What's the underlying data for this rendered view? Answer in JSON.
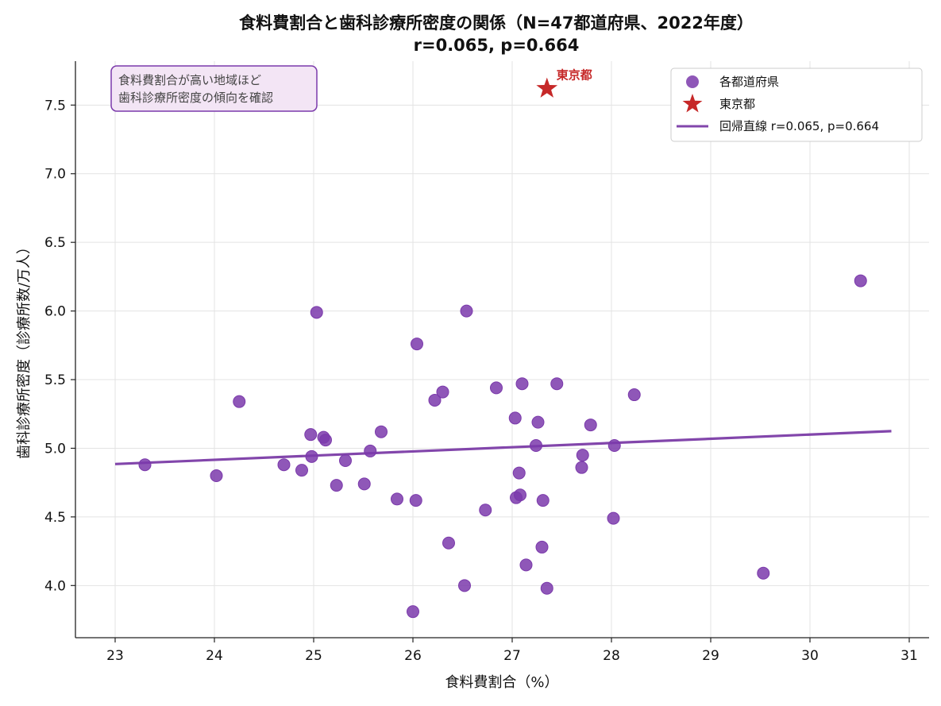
{
  "chart_data": {
    "type": "scatter",
    "title": "食料費割合と歯科診療所密度の関係（N=47都道府県、2022年度）",
    "subtitle": "r=0.065, p=0.664",
    "xlabel": "食料費割合（%）",
    "ylabel": "歯科診療所密度（診療所数/万人）",
    "xlim": [
      22.6,
      31.2
    ],
    "ylim": [
      3.62,
      7.82
    ],
    "xticks": [
      23,
      24,
      25,
      26,
      27,
      28,
      29,
      30,
      31
    ],
    "yticks": [
      4.0,
      4.5,
      5.0,
      5.5,
      6.0,
      6.5,
      7.0,
      7.5
    ],
    "grid": true,
    "legend_position": "top-right",
    "colors": {
      "points": "#7b3aab",
      "highlight": "#c62828",
      "line": "#8246ab",
      "note_border": "#7b3aab",
      "note_fill": "#f3e5f5"
    },
    "annotation": {
      "line1": "食料費割合が高い地域ほど",
      "line2": "歯科診療所密度の傾向を確認"
    },
    "legend": {
      "points_label": "各都道府県",
      "highlight_label": "東京都",
      "line_label": "回帰直線 r=0.065, p=0.664"
    },
    "highlight": {
      "label": "東京都",
      "x": 27.35,
      "y": 7.62
    },
    "regression": {
      "x": [
        23.0,
        30.82
      ],
      "y": [
        4.885,
        5.125
      ]
    },
    "points": [
      {
        "x": 23.3,
        "y": 4.88
      },
      {
        "x": 24.02,
        "y": 4.8
      },
      {
        "x": 24.25,
        "y": 5.34
      },
      {
        "x": 24.7,
        "y": 4.88
      },
      {
        "x": 24.88,
        "y": 4.84
      },
      {
        "x": 24.97,
        "y": 5.1
      },
      {
        "x": 24.98,
        "y": 4.94
      },
      {
        "x": 25.03,
        "y": 5.99
      },
      {
        "x": 25.1,
        "y": 5.08
      },
      {
        "x": 25.12,
        "y": 5.06
      },
      {
        "x": 25.23,
        "y": 4.73
      },
      {
        "x": 25.32,
        "y": 4.91
      },
      {
        "x": 25.51,
        "y": 4.74
      },
      {
        "x": 25.57,
        "y": 4.98
      },
      {
        "x": 25.68,
        "y": 5.12
      },
      {
        "x": 25.84,
        "y": 4.63
      },
      {
        "x": 26.0,
        "y": 3.81
      },
      {
        "x": 26.03,
        "y": 4.62
      },
      {
        "x": 26.04,
        "y": 5.76
      },
      {
        "x": 26.22,
        "y": 5.35
      },
      {
        "x": 26.3,
        "y": 5.41
      },
      {
        "x": 26.36,
        "y": 4.31
      },
      {
        "x": 26.52,
        "y": 4.0
      },
      {
        "x": 26.54,
        "y": 6.0
      },
      {
        "x": 26.73,
        "y": 4.55
      },
      {
        "x": 26.84,
        "y": 5.44
      },
      {
        "x": 27.03,
        "y": 5.22
      },
      {
        "x": 27.04,
        "y": 4.64
      },
      {
        "x": 27.07,
        "y": 4.82
      },
      {
        "x": 27.08,
        "y": 4.66
      },
      {
        "x": 27.1,
        "y": 5.47
      },
      {
        "x": 27.14,
        "y": 4.15
      },
      {
        "x": 27.24,
        "y": 5.02
      },
      {
        "x": 27.26,
        "y": 5.19
      },
      {
        "x": 27.3,
        "y": 4.28
      },
      {
        "x": 27.31,
        "y": 4.62
      },
      {
        "x": 27.35,
        "y": 3.98
      },
      {
        "x": 27.45,
        "y": 5.47
      },
      {
        "x": 27.7,
        "y": 4.86
      },
      {
        "x": 27.71,
        "y": 4.95
      },
      {
        "x": 27.79,
        "y": 5.17
      },
      {
        "x": 28.02,
        "y": 4.49
      },
      {
        "x": 28.03,
        "y": 5.02
      },
      {
        "x": 28.23,
        "y": 5.39
      },
      {
        "x": 29.53,
        "y": 4.09
      },
      {
        "x": 30.51,
        "y": 6.22
      }
    ]
  }
}
